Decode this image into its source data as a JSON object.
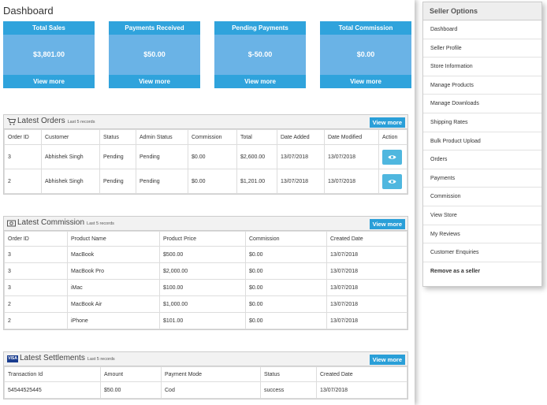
{
  "page_title": "Dashboard",
  "cards": [
    {
      "title": "Total Sales",
      "value": "$3,801.00",
      "link": "View more"
    },
    {
      "title": "Payments Received",
      "value": "$50.00",
      "link": "View more"
    },
    {
      "title": "Pending Payments",
      "value": "$-50.00",
      "link": "View more"
    },
    {
      "title": "Total Commission",
      "value": "$0.00",
      "link": "View more"
    }
  ],
  "orders": {
    "title": "Latest Orders",
    "subtitle": "Last 5 records",
    "button": "View more",
    "icon": "cart-icon",
    "columns": [
      "Order ID",
      "Customer",
      "Status",
      "Admin Status",
      "Commission",
      "Total",
      "Date Added",
      "Date Modified",
      "Action"
    ],
    "rows": [
      [
        "3",
        "Abhishek Singh",
        "Pending",
        "Pending",
        "$0.00",
        "$2,600.00",
        "13/07/2018",
        "13/07/2018"
      ],
      [
        "2",
        "Abhishek Singh",
        "Pending",
        "Pending",
        "$0.00",
        "$1,201.00",
        "13/07/2018",
        "13/07/2018"
      ]
    ]
  },
  "commission": {
    "title": "Latest Commission",
    "subtitle": "Last 5 records",
    "button": "View more",
    "icon": "money-icon",
    "columns": [
      "Order ID",
      "Product Name",
      "Product Price",
      "Commission",
      "Created Date"
    ],
    "rows": [
      [
        "3",
        "MacBook",
        "$500.00",
        "$0.00",
        "13/07/2018"
      ],
      [
        "3",
        "MacBook Pro",
        "$2,000.00",
        "$0.00",
        "13/07/2018"
      ],
      [
        "3",
        "iMac",
        "$100.00",
        "$0.00",
        "13/07/2018"
      ],
      [
        "2",
        "MacBook Air",
        "$1,000.00",
        "$0.00",
        "13/07/2018"
      ],
      [
        "2",
        "iPhone",
        "$101.00",
        "$0.00",
        "13/07/2018"
      ]
    ]
  },
  "settlements": {
    "title": "Latest Settlements",
    "subtitle": "Last 5 records",
    "button": "View more",
    "icon": "visa-icon",
    "icon_text": "VISA",
    "columns": [
      "Transaction Id",
      "Amount",
      "Payment Mode",
      "Status",
      "Created Date"
    ],
    "rows": [
      [
        "54544525445",
        "$50.00",
        "Cod",
        "success",
        "13/07/2018"
      ]
    ]
  },
  "sidebar": {
    "title": "Seller Options",
    "items": [
      "Dashboard",
      "Seller Profile",
      "Store Information",
      "Manage Products",
      "Manage Downloads",
      "Shipping Rates",
      "Bulk Product Upload",
      "Orders",
      "Payments",
      "Commission",
      "View Store",
      "My Reviews",
      "Customer Enquiries",
      "Remove as a seller"
    ]
  },
  "colors": {
    "card_header": "#2fa3dc",
    "card_body": "#6ab3e6",
    "button": "#2a9fd8"
  }
}
